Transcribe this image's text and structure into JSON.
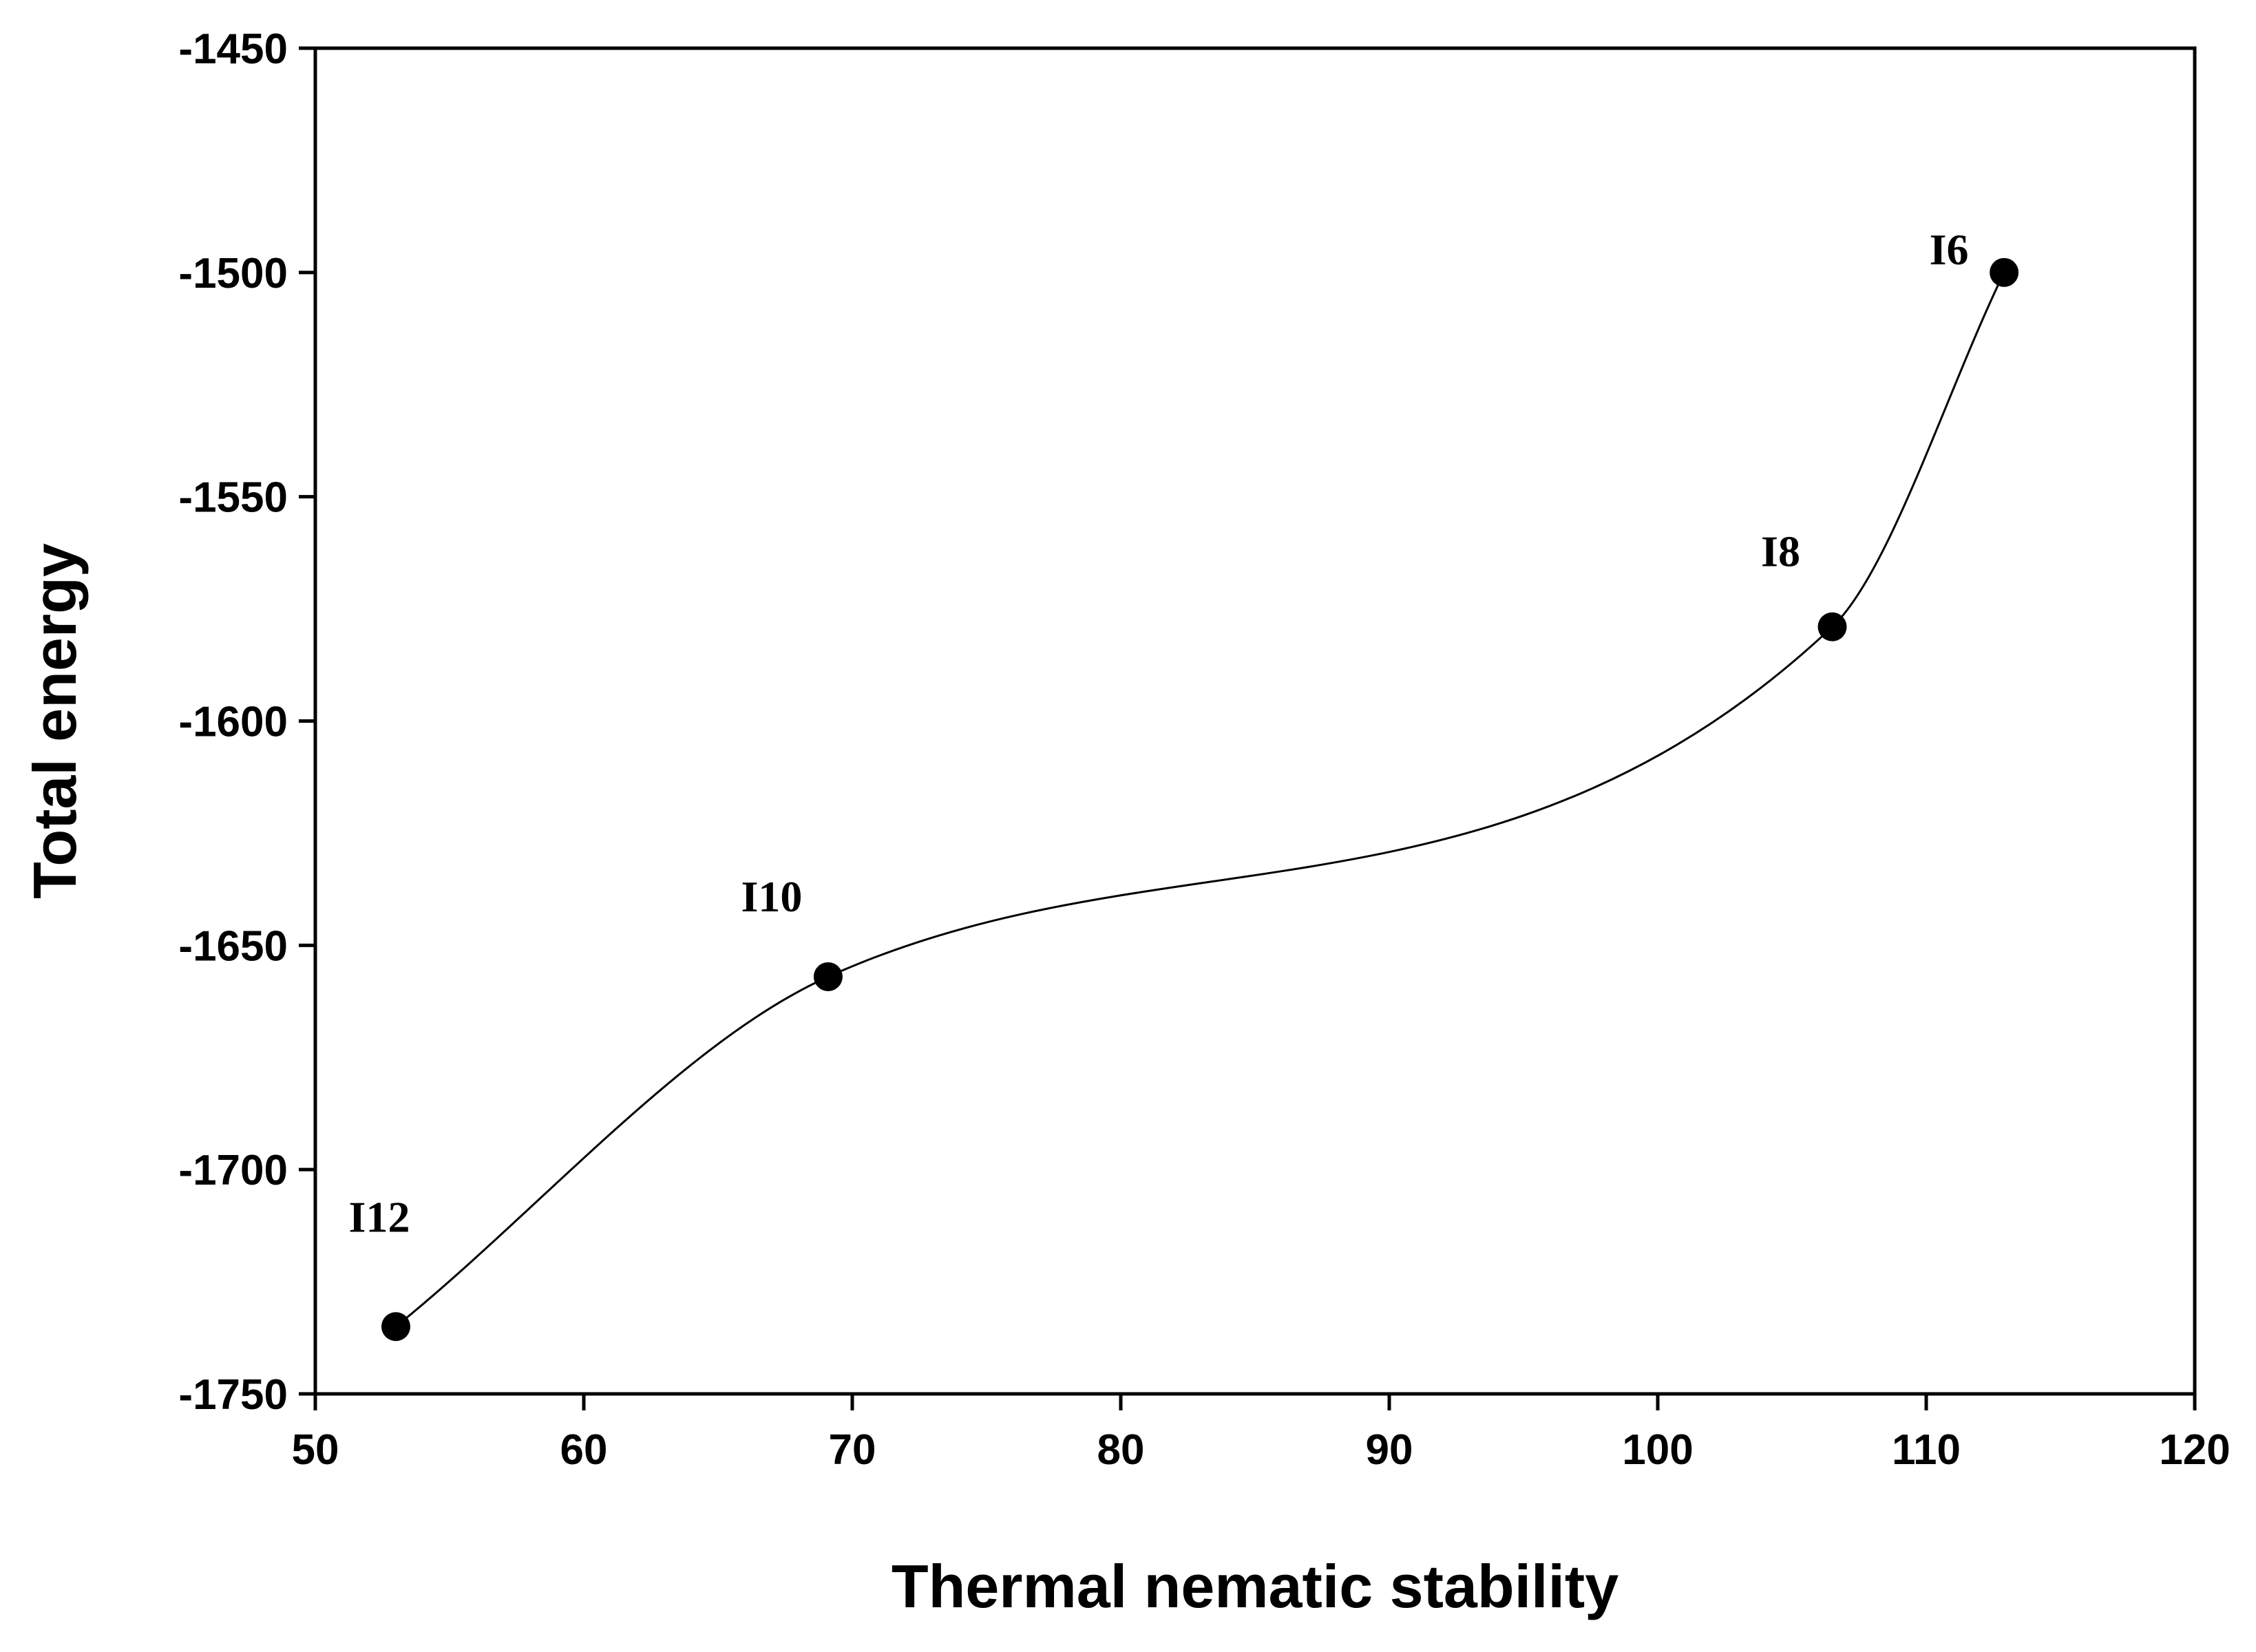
{
  "chart_data": {
    "type": "line",
    "title": "",
    "xlabel": "Thermal nematic stability",
    "ylabel": "Total energy",
    "xlim": [
      50,
      120
    ],
    "ylim": [
      -1750,
      -1450
    ],
    "xticks": [
      "50",
      "60",
      "70",
      "80",
      "90",
      "100",
      "110",
      "120"
    ],
    "yticks": [
      "-1450",
      "-1500",
      "-1550",
      "-1600",
      "-1650",
      "-1700",
      "-1750"
    ],
    "grid": false,
    "legend": "none",
    "line_style": "smooth",
    "colors": {
      "line": "#000000",
      "marker": "#000000",
      "axis": "#000000",
      "background": "#ffffff"
    },
    "series": [
      {
        "name": "Total energy",
        "points": [
          {
            "label": "I12",
            "x": 53,
            "y": -1735
          },
          {
            "label": "I10",
            "x": 69.1,
            "y": -1657
          },
          {
            "label": "I8",
            "x": 106.5,
            "y": -1579
          },
          {
            "label": "I6",
            "x": 112.9,
            "y": -1500
          }
        ]
      }
    ]
  }
}
